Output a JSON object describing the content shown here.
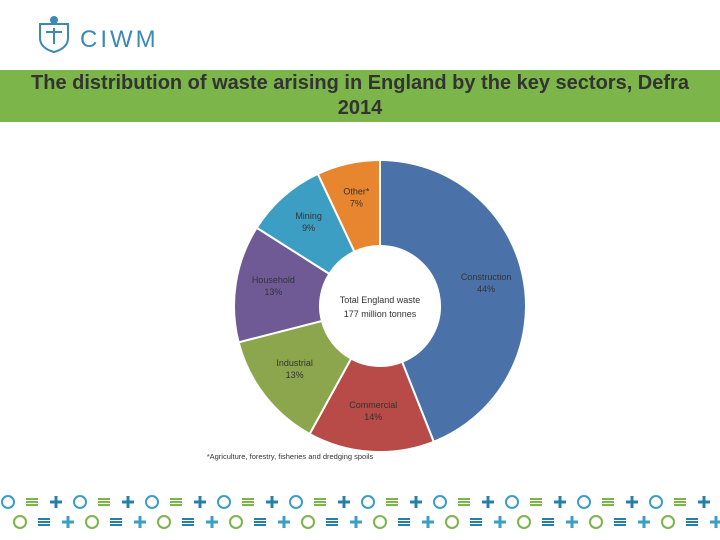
{
  "logo": {
    "text": "CIWM"
  },
  "chart_data": {
    "type": "pie",
    "title": "The distribution of waste arising in England by the key sectors, Defra 2014",
    "categories": [
      "Construction",
      "Commercial",
      "Industrial",
      "Household",
      "Mining",
      "Other*"
    ],
    "values": [
      44,
      14,
      13,
      13,
      9,
      7
    ],
    "value_labels": [
      "44%",
      "14%",
      "13%",
      "13%",
      "9%",
      "7%"
    ],
    "colors": [
      "#4a72a8",
      "#b84a47",
      "#8ca64e",
      "#6f5a95",
      "#3d9ec4",
      "#e8852f"
    ],
    "center_label": [
      "Total England waste",
      "177 million tonnes"
    ],
    "footnote": "*Agriculture, forestry, fisheries and dredging spoils"
  }
}
